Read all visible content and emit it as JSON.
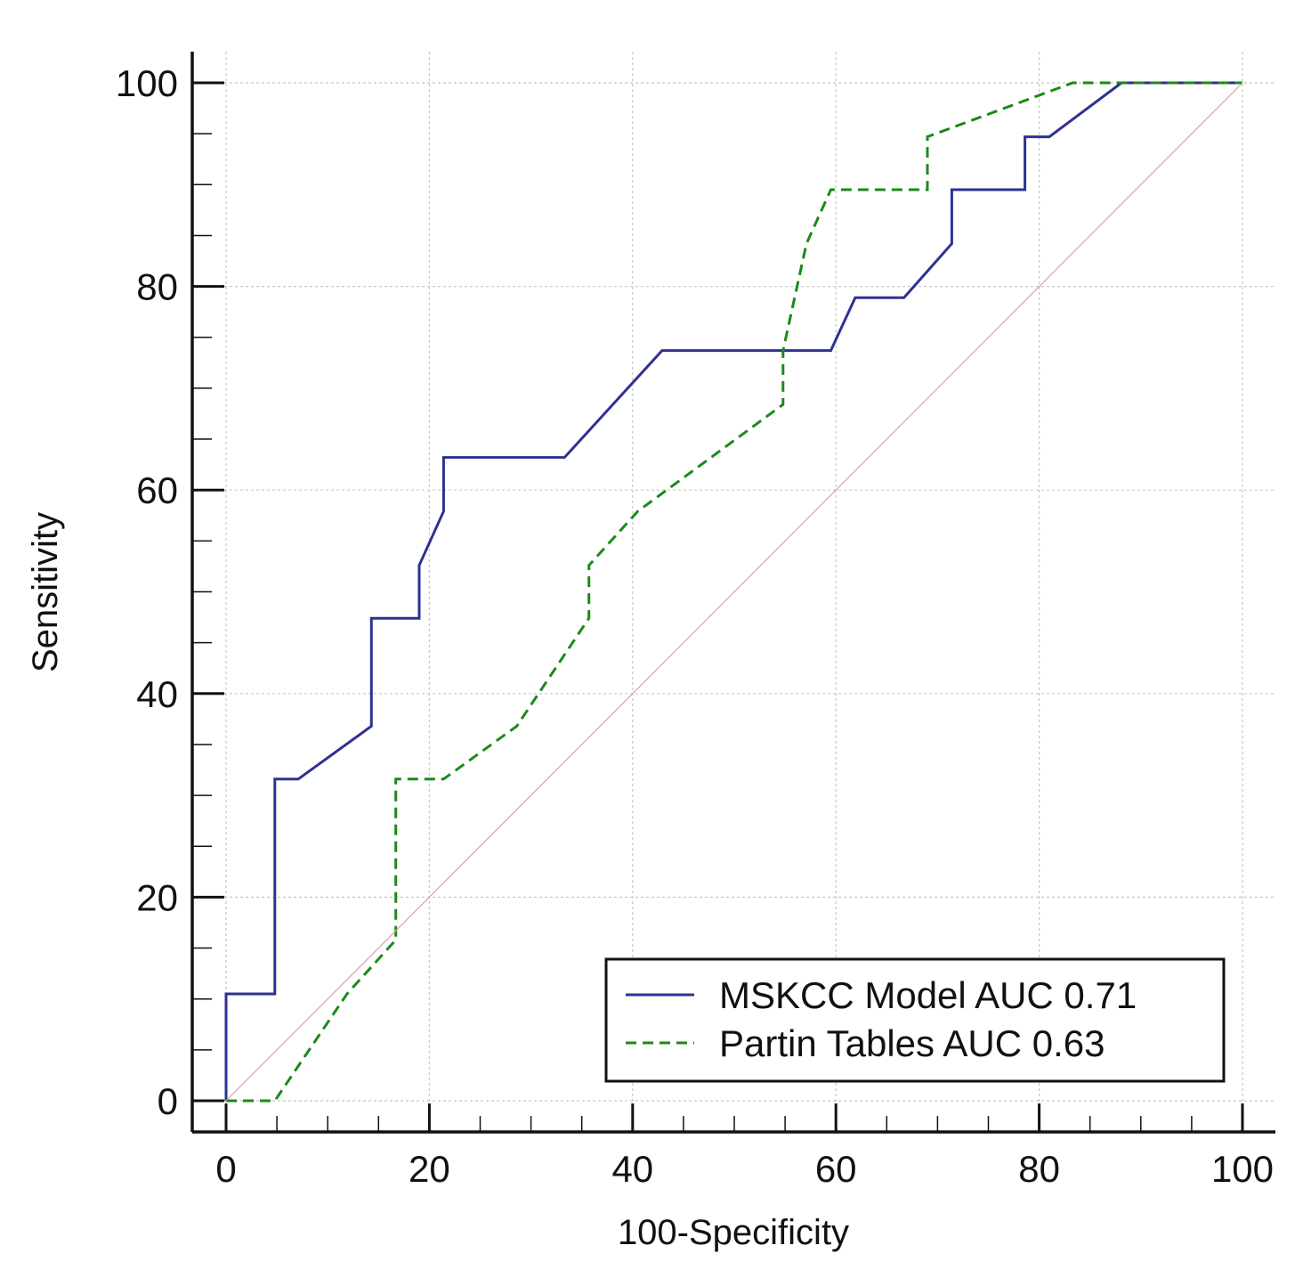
{
  "chart_data": {
    "type": "line",
    "title": "",
    "xlabel": "100-Specificity",
    "ylabel": "Sensitivity",
    "xlim": [
      0,
      100
    ],
    "ylim": [
      0,
      100
    ],
    "xticks": [
      0,
      20,
      40,
      60,
      80,
      100
    ],
    "yticks": [
      0,
      20,
      40,
      60,
      80,
      100
    ],
    "grid": true,
    "legend_position": "bottom-right",
    "series": [
      {
        "name": "MSKCC Model AUC 0.71",
        "color": "#2e3192",
        "style": "solid",
        "x": [
          0,
          0,
          4.8,
          4.8,
          7.1,
          14.3,
          14.3,
          19.0,
          19.0,
          21.4,
          21.4,
          33.3,
          42.9,
          59.5,
          61.9,
          66.7,
          71.4,
          71.4,
          78.6,
          78.6,
          81.0,
          88.1,
          100
        ],
        "y": [
          0,
          10.5,
          10.5,
          31.6,
          31.6,
          36.8,
          47.4,
          47.4,
          52.6,
          57.9,
          63.2,
          63.2,
          73.7,
          73.7,
          78.9,
          78.9,
          84.2,
          89.5,
          89.5,
          94.7,
          94.7,
          100,
          100
        ]
      },
      {
        "name": "Partin Tables AUC 0.63",
        "color": "#1a8a1a",
        "style": "dashed",
        "x": [
          0,
          4.8,
          11.9,
          16.7,
          16.7,
          21.4,
          28.6,
          35.7,
          35.7,
          40.5,
          54.8,
          54.8,
          57.1,
          59.5,
          69.0,
          69.0,
          83.3,
          100
        ],
        "y": [
          0,
          0,
          10.5,
          15.8,
          31.6,
          31.6,
          36.8,
          47.4,
          52.6,
          57.9,
          68.4,
          73.7,
          84.2,
          89.5,
          89.5,
          94.7,
          100,
          100
        ]
      },
      {
        "name": "reference",
        "color": "#d4a5a5",
        "style": "thin",
        "x": [
          0,
          100
        ],
        "y": [
          0,
          100
        ]
      }
    ]
  }
}
